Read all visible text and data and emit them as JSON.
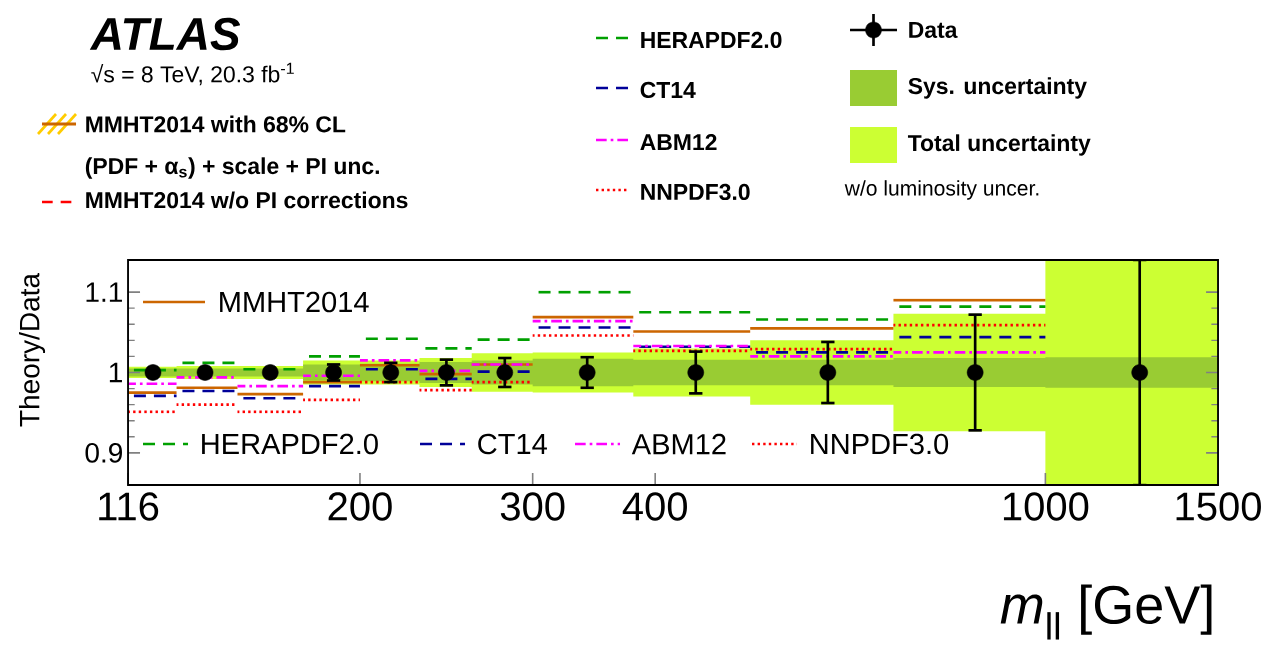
{
  "chart_data": {
    "type": "line",
    "xlabel": "*m*$_{ll}$ [GeV]",
    "ylabel": "Theory/Data",
    "annotations": [
      "ATLAS",
      "√s = 8 TeV, 20.3 fb$^{-1}$",
      "MMHT2014 with 68% CL",
      "(PDF + α$_{s}$) + scale + PI unc.",
      "MMHT2014 w/o PI corrections",
      "w/o luminosity uncer."
    ],
    "log": "x",
    "legend": "top",
    "xlim": [
      116,
      1500
    ],
    "ylim": [
      0.86,
      1.14
    ],
    "xticks": [
      116,
      200,
      300,
      400,
      1000,
      1500
    ],
    "yticks": [
      0.9,
      1,
      1.1
    ],
    "series": [
      {
        "name": "Sys. uncertainty",
        "color": "#99cc33",
        "x": [
          116,
          130,
          130,
          150,
          150,
          175,
          175,
          200,
          200,
          230,
          230,
          260,
          260,
          300,
          300,
          380,
          380,
          500,
          500,
          700,
          700,
          1000,
          1000,
          1500
        ],
        "values": [
          null,
          null,
          null,
          null,
          null,
          null,
          null,
          null,
          null,
          null,
          null,
          null,
          null,
          null,
          null,
          null,
          null,
          null,
          null,
          null,
          null,
          null,
          null,
          null
        ],
        "lower": [
          0.995,
          0.995,
          0.995,
          0.995,
          0.995,
          0.995,
          0.99,
          0.99,
          0.989,
          0.989,
          0.987,
          0.987,
          0.985,
          0.985,
          0.983,
          0.983,
          0.984,
          0.984,
          0.984,
          0.984,
          0.982,
          0.982,
          0.981,
          0.981
        ],
        "upper": [
          1.005,
          1.005,
          1.005,
          1.005,
          1.005,
          1.005,
          1.01,
          1.01,
          1.011,
          1.011,
          1.013,
          1.013,
          1.015,
          1.015,
          1.017,
          1.017,
          1.016,
          1.016,
          1.016,
          1.016,
          1.018,
          1.018,
          1.019,
          1.019
        ]
      },
      {
        "name": "Total uncertainty",
        "color": "#ccff33",
        "x": [
          116,
          130,
          130,
          150,
          150,
          175,
          175,
          200,
          200,
          230,
          230,
          260,
          260,
          300,
          300,
          380,
          380,
          500,
          500,
          700,
          700,
          1000,
          1000,
          1500
        ],
        "values": [
          null,
          null,
          null,
          null,
          null,
          null,
          null,
          null,
          null,
          null,
          null,
          null,
          null,
          null,
          null,
          null,
          null,
          null,
          null,
          null,
          null,
          null,
          null,
          null
        ],
        "lower": [
          0.993,
          0.993,
          0.992,
          0.992,
          0.992,
          0.992,
          0.985,
          0.985,
          0.985,
          0.985,
          0.982,
          0.982,
          0.976,
          0.976,
          0.975,
          0.975,
          0.97,
          0.97,
          0.96,
          0.96,
          0.927,
          0.927,
          0.86,
          0.86
        ],
        "upper": [
          1.007,
          1.007,
          1.008,
          1.008,
          1.008,
          1.008,
          1.015,
          1.015,
          1.015,
          1.015,
          1.018,
          1.018,
          1.024,
          1.024,
          1.025,
          1.025,
          1.03,
          1.03,
          1.04,
          1.04,
          1.073,
          1.073,
          1.14,
          1.14
        ]
      },
      {
        "name": "MMHT2014",
        "color": "#cc6600",
        "line_style": "solid",
        "x": [
          116,
          130,
          null,
          130,
          150,
          null,
          150,
          175,
          null,
          175,
          200,
          null,
          200,
          230,
          null,
          230,
          260,
          null,
          260,
          300,
          null,
          300,
          380,
          null,
          380,
          500,
          null,
          500,
          700,
          null,
          700,
          1000
        ],
        "values": [
          0.975,
          0.975,
          null,
          0.981,
          0.981,
          null,
          0.973,
          0.973,
          null,
          0.988,
          0.988,
          null,
          1.009,
          1.009,
          null,
          0.998,
          0.998,
          null,
          1.01,
          1.01,
          null,
          1.069,
          1.069,
          null,
          1.051,
          1.051,
          null,
          1.055,
          1.055,
          null,
          1.09,
          1.09
        ]
      },
      {
        "name": "HERAPDF2.0",
        "color": "#00a000",
        "line_style": "dashed",
        "x": [
          116,
          130,
          null,
          130,
          150,
          null,
          150,
          175,
          null,
          175,
          200,
          null,
          200,
          230,
          null,
          230,
          260,
          null,
          260,
          300,
          null,
          300,
          380,
          null,
          380,
          500,
          null,
          500,
          700,
          null,
          700,
          1000
        ],
        "values": [
          1.003,
          1.003,
          null,
          1.012,
          1.012,
          null,
          1.004,
          1.004,
          null,
          1.02,
          1.02,
          null,
          1.042,
          1.042,
          null,
          1.03,
          1.03,
          null,
          1.041,
          1.041,
          null,
          1.1,
          1.1,
          null,
          1.075,
          1.075,
          null,
          1.066,
          1.066,
          null,
          1.082,
          1.082
        ]
      },
      {
        "name": "CT14",
        "color": "#000099",
        "line_style": "dashed",
        "x": [
          116,
          130,
          null,
          130,
          150,
          null,
          150,
          175,
          null,
          175,
          200,
          null,
          200,
          230,
          null,
          230,
          260,
          null,
          260,
          300,
          null,
          300,
          380,
          null,
          380,
          500,
          null,
          500,
          700,
          null,
          700,
          1000
        ],
        "values": [
          0.971,
          0.971,
          null,
          0.977,
          0.977,
          null,
          0.968,
          0.968,
          null,
          0.983,
          0.983,
          null,
          1.004,
          1.004,
          null,
          0.992,
          0.992,
          null,
          1.001,
          1.001,
          null,
          1.056,
          1.056,
          null,
          1.032,
          1.032,
          null,
          1.025,
          1.025,
          null,
          1.044,
          1.044
        ]
      },
      {
        "name": "ABM12",
        "color": "#ff00ff",
        "line_style": "dashdot",
        "x": [
          116,
          130,
          null,
          130,
          150,
          null,
          150,
          175,
          null,
          175,
          200,
          null,
          200,
          230,
          null,
          230,
          260,
          null,
          260,
          300,
          null,
          300,
          380,
          null,
          380,
          500,
          null,
          500,
          700,
          null,
          700,
          1000
        ],
        "values": [
          0.986,
          0.986,
          null,
          0.994,
          0.994,
          null,
          0.983,
          0.983,
          null,
          0.996,
          0.996,
          null,
          1.015,
          1.015,
          null,
          1.002,
          1.002,
          null,
          1.01,
          1.01,
          null,
          1.064,
          1.064,
          null,
          1.033,
          1.033,
          null,
          1.02,
          1.02,
          null,
          1.025,
          1.025
        ]
      },
      {
        "name": "NNPDF3.0",
        "color": "#ff0000",
        "line_style": "dotted",
        "x": [
          116,
          130,
          null,
          130,
          150,
          null,
          150,
          175,
          null,
          175,
          200,
          null,
          200,
          230,
          null,
          230,
          260,
          null,
          260,
          300,
          null,
          300,
          380,
          null,
          380,
          500,
          null,
          500,
          700,
          null,
          700,
          1000
        ],
        "values": [
          0.951,
          0.951,
          null,
          0.96,
          0.96,
          null,
          0.951,
          0.951,
          null,
          0.966,
          0.966,
          null,
          0.988,
          0.988,
          null,
          0.978,
          0.978,
          null,
          0.988,
          0.988,
          null,
          1.046,
          1.046,
          null,
          1.027,
          1.027,
          null,
          1.029,
          1.029,
          null,
          1.059,
          1.059
        ]
      },
      {
        "name": "Data",
        "type": "scatter",
        "color": "#000000",
        "marker": "circle",
        "x": [
          123,
          139,
          162,
          188,
          215,
          245,
          281,
          341,
          440,
          600,
          848,
          1248
        ],
        "values": [
          1,
          1,
          1,
          1,
          1,
          1,
          1,
          1,
          1,
          1,
          1,
          1
        ],
        "errors": [
          null,
          null,
          null,
          0.01,
          0.012,
          0.016,
          0.018,
          0.019,
          0.026,
          0.038,
          0.072,
          0.14
        ]
      }
    ]
  }
}
